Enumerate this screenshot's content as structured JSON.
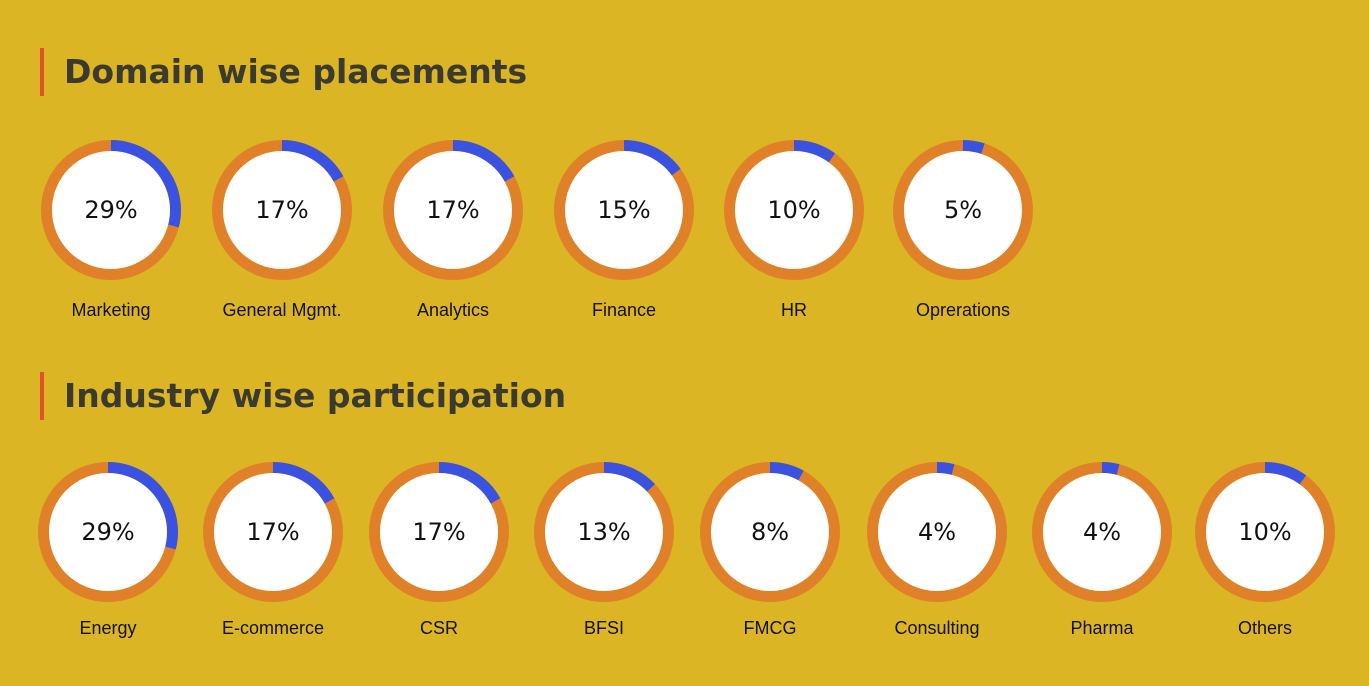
{
  "colors": {
    "background": "#dcb525",
    "ring": "#e0812a",
    "highlight": "#3b52e0",
    "inner": "#ffffff",
    "title": "#3a3a2e",
    "accent_bar": "#e0522a"
  },
  "chart_data": [
    {
      "type": "pie",
      "variant": "donut-grid",
      "title": "Domain wise placements",
      "categories": [
        "Marketing",
        "General Mgmt.",
        "Analytics",
        "Finance",
        "HR",
        "Oprerations"
      ],
      "value_labels": [
        "29%",
        "17%",
        "17%",
        "15%",
        "10%",
        "5%"
      ],
      "values": [
        29,
        17,
        17,
        15,
        10,
        5
      ],
      "unit": "%"
    },
    {
      "type": "pie",
      "variant": "donut-grid",
      "title": "Industry wise participation",
      "categories": [
        "Energy",
        "E-commerce",
        "CSR",
        "BFSI",
        "FMCG",
        "Consulting",
        "Pharma",
        "Others"
      ],
      "value_labels": [
        "29%",
        "17%",
        "17%",
        "13%",
        "8%",
        "4%",
        "4%",
        "10%"
      ],
      "values": [
        29,
        17,
        17,
        13,
        8,
        4,
        4,
        10
      ],
      "unit": "%"
    }
  ]
}
